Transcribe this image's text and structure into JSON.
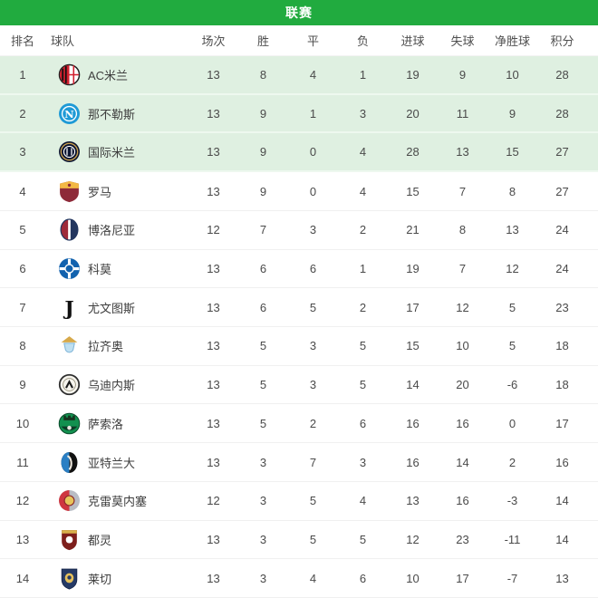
{
  "title": "联赛",
  "accent_color": "#21ab3f",
  "highlight_row_color": "#dff0e1",
  "table": {
    "columns": [
      {
        "key": "rank",
        "label": "排名"
      },
      {
        "key": "team",
        "label": "球队"
      },
      {
        "key": "played",
        "label": "场次"
      },
      {
        "key": "win",
        "label": "胜"
      },
      {
        "key": "draw",
        "label": "平"
      },
      {
        "key": "loss",
        "label": "负"
      },
      {
        "key": "goals_for",
        "label": "进球"
      },
      {
        "key": "goals_against",
        "label": "失球"
      },
      {
        "key": "goal_diff",
        "label": "净胜球"
      },
      {
        "key": "points",
        "label": "积分"
      }
    ],
    "rows": [
      {
        "rank": 1,
        "team": "AC米兰",
        "logo": "ac-milan-logo",
        "highlight": true,
        "played": 13,
        "win": 8,
        "draw": 4,
        "loss": 1,
        "goals_for": 19,
        "goals_against": 9,
        "goal_diff": 10,
        "points": 28
      },
      {
        "rank": 2,
        "team": "那不勒斯",
        "logo": "napoli-logo",
        "highlight": true,
        "played": 13,
        "win": 9,
        "draw": 1,
        "loss": 3,
        "goals_for": 20,
        "goals_against": 11,
        "goal_diff": 9,
        "points": 28
      },
      {
        "rank": 3,
        "team": "国际米兰",
        "logo": "inter-logo",
        "highlight": true,
        "played": 13,
        "win": 9,
        "draw": 0,
        "loss": 4,
        "goals_for": 28,
        "goals_against": 13,
        "goal_diff": 15,
        "points": 27
      },
      {
        "rank": 4,
        "team": "罗马",
        "logo": "roma-logo",
        "highlight": false,
        "played": 13,
        "win": 9,
        "draw": 0,
        "loss": 4,
        "goals_for": 15,
        "goals_against": 7,
        "goal_diff": 8,
        "points": 27
      },
      {
        "rank": 5,
        "team": "博洛尼亚",
        "logo": "bologna-logo",
        "highlight": false,
        "played": 12,
        "win": 7,
        "draw": 3,
        "loss": 2,
        "goals_for": 21,
        "goals_against": 8,
        "goal_diff": 13,
        "points": 24
      },
      {
        "rank": 6,
        "team": "科莫",
        "logo": "como-logo",
        "highlight": false,
        "played": 13,
        "win": 6,
        "draw": 6,
        "loss": 1,
        "goals_for": 19,
        "goals_against": 7,
        "goal_diff": 12,
        "points": 24
      },
      {
        "rank": 7,
        "team": "尤文图斯",
        "logo": "juventus-logo",
        "highlight": false,
        "played": 13,
        "win": 6,
        "draw": 5,
        "loss": 2,
        "goals_for": 17,
        "goals_against": 12,
        "goal_diff": 5,
        "points": 23
      },
      {
        "rank": 8,
        "team": "拉齐奥",
        "logo": "lazio-logo",
        "highlight": false,
        "played": 13,
        "win": 5,
        "draw": 3,
        "loss": 5,
        "goals_for": 15,
        "goals_against": 10,
        "goal_diff": 5,
        "points": 18
      },
      {
        "rank": 9,
        "team": "乌迪内斯",
        "logo": "udinese-logo",
        "highlight": false,
        "played": 13,
        "win": 5,
        "draw": 3,
        "loss": 5,
        "goals_for": 14,
        "goals_against": 20,
        "goal_diff": -6,
        "points": 18
      },
      {
        "rank": 10,
        "team": "萨索洛",
        "logo": "sassuolo-logo",
        "highlight": false,
        "played": 13,
        "win": 5,
        "draw": 2,
        "loss": 6,
        "goals_for": 16,
        "goals_against": 16,
        "goal_diff": 0,
        "points": 17
      },
      {
        "rank": 11,
        "team": "亚特兰大",
        "logo": "atalanta-logo",
        "highlight": false,
        "played": 13,
        "win": 3,
        "draw": 7,
        "loss": 3,
        "goals_for": 16,
        "goals_against": 14,
        "goal_diff": 2,
        "points": 16
      },
      {
        "rank": 12,
        "team": "克雷莫内塞",
        "logo": "cremonese-logo",
        "highlight": false,
        "played": 12,
        "win": 3,
        "draw": 5,
        "loss": 4,
        "goals_for": 13,
        "goals_against": 16,
        "goal_diff": -3,
        "points": 14
      },
      {
        "rank": 13,
        "team": "都灵",
        "logo": "torino-logo",
        "highlight": false,
        "played": 13,
        "win": 3,
        "draw": 5,
        "loss": 5,
        "goals_for": 12,
        "goals_against": 23,
        "goal_diff": -11,
        "points": 14
      },
      {
        "rank": 14,
        "team": "莱切",
        "logo": "lecce-logo",
        "highlight": false,
        "played": 13,
        "win": 3,
        "draw": 4,
        "loss": 6,
        "goals_for": 10,
        "goals_against": 17,
        "goal_diff": -7,
        "points": 13
      }
    ]
  }
}
